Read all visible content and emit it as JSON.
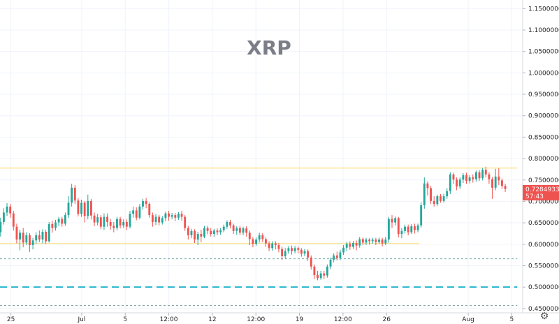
{
  "chart_data": {
    "type": "candlestick",
    "symbol": "XRP",
    "y_range": [
      0.44,
      1.17
    ],
    "y_ticks": [
      {
        "value": 0.45,
        "label": "0.45000000"
      },
      {
        "value": 0.5,
        "label": "0.50000000"
      },
      {
        "value": 0.55,
        "label": "0.55000000"
      },
      {
        "value": 0.6,
        "label": "0.60000000"
      },
      {
        "value": 0.65,
        "label": "0.65000000"
      },
      {
        "value": 0.7,
        "label": "0.70000000"
      },
      {
        "value": 0.75,
        "label": "0.75000000"
      },
      {
        "value": 0.8,
        "label": "0.80000000"
      },
      {
        "value": 0.85,
        "label": "0.85000000"
      },
      {
        "value": 0.9,
        "label": "0.90000000"
      },
      {
        "value": 0.95,
        "label": "0.95000000"
      },
      {
        "value": 1.0,
        "label": "1.00000000"
      },
      {
        "value": 1.05,
        "label": "1.05000000"
      },
      {
        "value": 1.1,
        "label": "1.10000000"
      },
      {
        "value": 1.15,
        "label": "1.15000000"
      }
    ],
    "x_range": [
      0,
      48
    ],
    "x_ticks": [
      {
        "value": 1,
        "label": "25"
      },
      {
        "value": 7.5,
        "label": "Jul"
      },
      {
        "value": 11.5,
        "label": "5"
      },
      {
        "value": 15.5,
        "label": "12:00"
      },
      {
        "value": 19.5,
        "label": "12"
      },
      {
        "value": 23.5,
        "label": "12:00"
      },
      {
        "value": 27.5,
        "label": "19"
      },
      {
        "value": 31.5,
        "label": "12:00"
      },
      {
        "value": 35.5,
        "label": "26"
      },
      {
        "value": 43,
        "label": "Aug"
      },
      {
        "value": 47,
        "label": "5"
      }
    ],
    "horizontal_lines": [
      {
        "value": 0.778,
        "style": "solid",
        "color": "#fbe59a",
        "x_end": 47.5
      },
      {
        "value": 0.602,
        "style": "solid",
        "color": "#fbe59a",
        "x_end": 38.5
      },
      {
        "value": 0.566,
        "style": "dotted",
        "color": "#6aa4a4",
        "x_end": 47.5
      },
      {
        "value": 0.5,
        "style": "dashed",
        "color": "#26b5ce",
        "x_end": 47.5
      },
      {
        "value": 0.457,
        "style": "dotted",
        "color": "#7a9a9a",
        "x_end": 47.5
      }
    ],
    "current_price": {
      "label": "0.72849338",
      "value": 0.7285,
      "countdown": "57:43",
      "color": "#ef5350"
    },
    "up_color": "#26a69a",
    "down_color": "#ef5350",
    "candles": [
      [
        0.628,
        0.652,
        0.618,
        0.662
      ],
      [
        0.652,
        0.674,
        0.646,
        0.684
      ],
      [
        0.674,
        0.688,
        0.666,
        0.696
      ],
      [
        0.688,
        0.672,
        0.662,
        0.694
      ],
      [
        0.672,
        0.641,
        0.632,
        0.678
      ],
      [
        0.641,
        0.611,
        0.602,
        0.648
      ],
      [
        0.611,
        0.627,
        0.586,
        0.634
      ],
      [
        0.627,
        0.604,
        0.593,
        0.638
      ],
      [
        0.604,
        0.621,
        0.598,
        0.628
      ],
      [
        0.621,
        0.598,
        0.582,
        0.626
      ],
      [
        0.598,
        0.609,
        0.588,
        0.615
      ],
      [
        0.609,
        0.621,
        0.601,
        0.628
      ],
      [
        0.621,
        0.611,
        0.605,
        0.632
      ],
      [
        0.611,
        0.629,
        0.602,
        0.635
      ],
      [
        0.629,
        0.607,
        0.601,
        0.634
      ],
      [
        0.607,
        0.647,
        0.604,
        0.652
      ],
      [
        0.647,
        0.638,
        0.627,
        0.655
      ],
      [
        0.638,
        0.651,
        0.632,
        0.657
      ],
      [
        0.651,
        0.659,
        0.642,
        0.664
      ],
      [
        0.659,
        0.648,
        0.641,
        0.664
      ],
      [
        0.648,
        0.668,
        0.643,
        0.674
      ],
      [
        0.668,
        0.697,
        0.661,
        0.712
      ],
      [
        0.697,
        0.732,
        0.688,
        0.741
      ],
      [
        0.732,
        0.702,
        0.694,
        0.738
      ],
      [
        0.702,
        0.671,
        0.665,
        0.708
      ],
      [
        0.671,
        0.697,
        0.664,
        0.704
      ],
      [
        0.697,
        0.666,
        0.651,
        0.701
      ],
      [
        0.666,
        0.701,
        0.658,
        0.716
      ],
      [
        0.701,
        0.667,
        0.658,
        0.706
      ],
      [
        0.667,
        0.651,
        0.642,
        0.674
      ],
      [
        0.651,
        0.663,
        0.644,
        0.671
      ],
      [
        0.663,
        0.641,
        0.635,
        0.668
      ],
      [
        0.641,
        0.664,
        0.633,
        0.672
      ],
      [
        0.664,
        0.652,
        0.641,
        0.672
      ],
      [
        0.652,
        0.643,
        0.634,
        0.659
      ],
      [
        0.643,
        0.638,
        0.628,
        0.652
      ],
      [
        0.638,
        0.659,
        0.632,
        0.664
      ],
      [
        0.659,
        0.644,
        0.637,
        0.664
      ],
      [
        0.644,
        0.652,
        0.638,
        0.658
      ],
      [
        0.652,
        0.641,
        0.633,
        0.658
      ],
      [
        0.641,
        0.671,
        0.637,
        0.678
      ],
      [
        0.671,
        0.679,
        0.662,
        0.688
      ],
      [
        0.679,
        0.662,
        0.656,
        0.686
      ],
      [
        0.662,
        0.688,
        0.658,
        0.694
      ],
      [
        0.688,
        0.701,
        0.681,
        0.706
      ],
      [
        0.701,
        0.694,
        0.684,
        0.708
      ],
      [
        0.694,
        0.668,
        0.662,
        0.698
      ],
      [
        0.668,
        0.652,
        0.641,
        0.674
      ],
      [
        0.652,
        0.664,
        0.645,
        0.671
      ],
      [
        0.664,
        0.651,
        0.644,
        0.669
      ],
      [
        0.651,
        0.661,
        0.646,
        0.666
      ],
      [
        0.661,
        0.672,
        0.654,
        0.676
      ],
      [
        0.672,
        0.664,
        0.655,
        0.678
      ],
      [
        0.664,
        0.668,
        0.658,
        0.673
      ],
      [
        0.668,
        0.662,
        0.654,
        0.673
      ],
      [
        0.662,
        0.671,
        0.657,
        0.675
      ],
      [
        0.671,
        0.664,
        0.655,
        0.678
      ],
      [
        0.664,
        0.638,
        0.631,
        0.668
      ],
      [
        0.638,
        0.621,
        0.611,
        0.643
      ],
      [
        0.621,
        0.631,
        0.614,
        0.636
      ],
      [
        0.631,
        0.611,
        0.603,
        0.635
      ],
      [
        0.611,
        0.624,
        0.598,
        0.629
      ],
      [
        0.624,
        0.618,
        0.605,
        0.634
      ],
      [
        0.618,
        0.638,
        0.614,
        0.643
      ],
      [
        0.638,
        0.631,
        0.623,
        0.643
      ],
      [
        0.631,
        0.624,
        0.618,
        0.638
      ],
      [
        0.624,
        0.632,
        0.617,
        0.636
      ],
      [
        0.632,
        0.628,
        0.621,
        0.637
      ],
      [
        0.628,
        0.633,
        0.622,
        0.638
      ],
      [
        0.633,
        0.641,
        0.628,
        0.646
      ],
      [
        0.641,
        0.652,
        0.636,
        0.656
      ],
      [
        0.652,
        0.644,
        0.637,
        0.657
      ],
      [
        0.644,
        0.631,
        0.624,
        0.648
      ],
      [
        0.631,
        0.638,
        0.622,
        0.642
      ],
      [
        0.638,
        0.627,
        0.621,
        0.643
      ],
      [
        0.627,
        0.637,
        0.621,
        0.641
      ],
      [
        0.637,
        0.627,
        0.618,
        0.642
      ],
      [
        0.627,
        0.612,
        0.598,
        0.632
      ],
      [
        0.612,
        0.601,
        0.593,
        0.617
      ],
      [
        0.601,
        0.611,
        0.596,
        0.616
      ],
      [
        0.611,
        0.621,
        0.604,
        0.627
      ],
      [
        0.621,
        0.612,
        0.605,
        0.626
      ],
      [
        0.612,
        0.602,
        0.594,
        0.616
      ],
      [
        0.602,
        0.591,
        0.584,
        0.607
      ],
      [
        0.591,
        0.602,
        0.585,
        0.607
      ],
      [
        0.602,
        0.598,
        0.588,
        0.607
      ],
      [
        0.598,
        0.589,
        0.581,
        0.603
      ],
      [
        0.589,
        0.572,
        0.563,
        0.594
      ],
      [
        0.572,
        0.584,
        0.567,
        0.591
      ],
      [
        0.584,
        0.591,
        0.578,
        0.596
      ],
      [
        0.591,
        0.584,
        0.576,
        0.597
      ],
      [
        0.584,
        0.591,
        0.579,
        0.596
      ],
      [
        0.591,
        0.587,
        0.579,
        0.595
      ],
      [
        0.587,
        0.578,
        0.571,
        0.591
      ],
      [
        0.578,
        0.584,
        0.572,
        0.589
      ],
      [
        0.584,
        0.569,
        0.561,
        0.588
      ],
      [
        0.569,
        0.548,
        0.541,
        0.574
      ],
      [
        0.548,
        0.528,
        0.519,
        0.553
      ],
      [
        0.528,
        0.521,
        0.516,
        0.538
      ],
      [
        0.521,
        0.532,
        0.517,
        0.538
      ],
      [
        0.532,
        0.527,
        0.519,
        0.538
      ],
      [
        0.527,
        0.548,
        0.522,
        0.553
      ],
      [
        0.548,
        0.564,
        0.542,
        0.569
      ],
      [
        0.564,
        0.574,
        0.558,
        0.579
      ],
      [
        0.574,
        0.568,
        0.562,
        0.583
      ],
      [
        0.568,
        0.581,
        0.563,
        0.587
      ],
      [
        0.581,
        0.592,
        0.575,
        0.598
      ],
      [
        0.592,
        0.601,
        0.584,
        0.606
      ],
      [
        0.601,
        0.594,
        0.587,
        0.607
      ],
      [
        0.594,
        0.603,
        0.589,
        0.608
      ],
      [
        0.603,
        0.597,
        0.586,
        0.609
      ],
      [
        0.597,
        0.612,
        0.592,
        0.617
      ],
      [
        0.612,
        0.604,
        0.598,
        0.616
      ],
      [
        0.604,
        0.611,
        0.598,
        0.615
      ],
      [
        0.611,
        0.607,
        0.599,
        0.614
      ],
      [
        0.607,
        0.611,
        0.601,
        0.615
      ],
      [
        0.611,
        0.605,
        0.598,
        0.615
      ],
      [
        0.605,
        0.611,
        0.601,
        0.616
      ],
      [
        0.611,
        0.602,
        0.595,
        0.615
      ],
      [
        0.602,
        0.611,
        0.598,
        0.617
      ],
      [
        0.611,
        0.659,
        0.604,
        0.664
      ],
      [
        0.659,
        0.651,
        0.638,
        0.668
      ],
      [
        0.651,
        0.661,
        0.644,
        0.665
      ],
      [
        0.661,
        0.624,
        0.616,
        0.664
      ],
      [
        0.624,
        0.631,
        0.614,
        0.638
      ],
      [
        0.631,
        0.641,
        0.625,
        0.646
      ],
      [
        0.641,
        0.628,
        0.621,
        0.646
      ],
      [
        0.628,
        0.642,
        0.624,
        0.647
      ],
      [
        0.642,
        0.633,
        0.625,
        0.648
      ],
      [
        0.633,
        0.644,
        0.628,
        0.648
      ],
      [
        0.644,
        0.691,
        0.639,
        0.698
      ],
      [
        0.691,
        0.742,
        0.683,
        0.756
      ],
      [
        0.742,
        0.731,
        0.714,
        0.747
      ],
      [
        0.731,
        0.701,
        0.694,
        0.736
      ],
      [
        0.701,
        0.694,
        0.688,
        0.712
      ],
      [
        0.694,
        0.712,
        0.689,
        0.716
      ],
      [
        0.712,
        0.701,
        0.697,
        0.717
      ],
      [
        0.701,
        0.712,
        0.697,
        0.718
      ],
      [
        0.712,
        0.724,
        0.706,
        0.731
      ],
      [
        0.724,
        0.763,
        0.717,
        0.768
      ],
      [
        0.763,
        0.751,
        0.741,
        0.767
      ],
      [
        0.751,
        0.735,
        0.726,
        0.756
      ],
      [
        0.735,
        0.751,
        0.729,
        0.756
      ],
      [
        0.751,
        0.761,
        0.743,
        0.766
      ],
      [
        0.761,
        0.748,
        0.741,
        0.767
      ],
      [
        0.748,
        0.756,
        0.742,
        0.761
      ],
      [
        0.756,
        0.752,
        0.744,
        0.763
      ],
      [
        0.752,
        0.768,
        0.746,
        0.772
      ],
      [
        0.768,
        0.754,
        0.748,
        0.773
      ],
      [
        0.754,
        0.774,
        0.749,
        0.778
      ],
      [
        0.774,
        0.763,
        0.756,
        0.781
      ],
      [
        0.763,
        0.752,
        0.741,
        0.768
      ],
      [
        0.752,
        0.732,
        0.706,
        0.757
      ],
      [
        0.732,
        0.758,
        0.726,
        0.776
      ],
      [
        0.758,
        0.749,
        0.738,
        0.777
      ],
      [
        0.749,
        0.736,
        0.729,
        0.754
      ],
      [
        0.736,
        0.729,
        0.722,
        0.741
      ]
    ]
  }
}
